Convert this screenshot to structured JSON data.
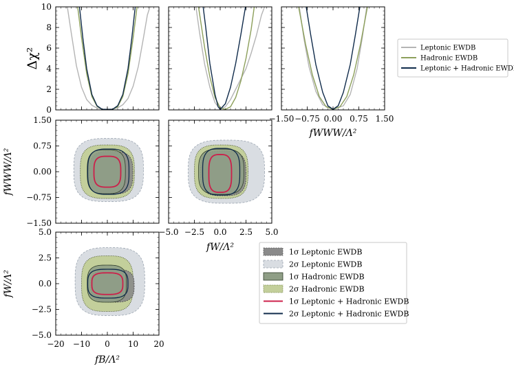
{
  "colors": {
    "leptonic_line": "#b4b4b4",
    "hadronic_line": "#8c9f5a",
    "combined_line": "#0f2a4a",
    "lep_1s_fill": "#8a8a8a",
    "lep_2s_fill": "#d9dde2",
    "had_1s_fill": "#8f9e86",
    "had_2s_fill": "#c3cf9b",
    "comb_1s_line": "#cc1f4a",
    "comb_2s_line": "#0f2a4a"
  },
  "chart_data": [
    {
      "id": "dchi2_fB",
      "type": "line",
      "ylabel": "Δχ²",
      "xlim": [
        -20,
        20
      ],
      "ylim": [
        0,
        10
      ],
      "yticks": [
        "0",
        "2",
        "4",
        "6",
        "8",
        "10"
      ],
      "series": [
        {
          "name": "Leptonic EWDB",
          "x": [
            -15.5,
            -14,
            -12,
            -10,
            -8,
            -6,
            -4,
            -2,
            0,
            2,
            4,
            6,
            8,
            10,
            12,
            14,
            15.5,
            16.5
          ],
          "y": [
            10,
            7.5,
            4.3,
            2.2,
            1.0,
            0.45,
            0.18,
            0.08,
            0.05,
            0.09,
            0.2,
            0.5,
            1.1,
            2.3,
            4.2,
            7.0,
            9.2,
            10
          ]
        },
        {
          "name": "Hadronic EWDB",
          "x": [
            -11.5,
            -10,
            -8,
            -6,
            -4,
            -2,
            0,
            2,
            4,
            6,
            8,
            10,
            11.5
          ],
          "y": [
            10,
            7.0,
            3.5,
            1.3,
            0.35,
            0.05,
            0.05,
            0.05,
            0.3,
            1.3,
            3.5,
            7.0,
            10
          ]
        },
        {
          "name": "Leptonic + Hadronic EWDB",
          "x": [
            -10.8,
            -9.5,
            -8,
            -6,
            -4,
            -2,
            0,
            2,
            4,
            6,
            8,
            9.5,
            10.8
          ],
          "y": [
            10,
            7.0,
            4.0,
            1.5,
            0.4,
            0.05,
            0.05,
            0.05,
            0.4,
            1.5,
            4.0,
            7.0,
            10
          ]
        }
      ]
    },
    {
      "id": "dchi2_fW",
      "type": "line",
      "xlim": [
        -5,
        5
      ],
      "ylim": [
        0,
        10
      ],
      "series": [
        {
          "name": "Leptonic EWDB",
          "x": [
            -2.35,
            -2.0,
            -1.5,
            -1.0,
            -0.5,
            0,
            0.5,
            1.0,
            1.5,
            2.0,
            2.5,
            3.0,
            3.5,
            4.0,
            4.3
          ],
          "y": [
            10,
            7.5,
            4.4,
            2.2,
            0.7,
            0.05,
            0.3,
            1.0,
            2.0,
            3.0,
            4.0,
            5.5,
            7.2,
            9.2,
            10
          ]
        },
        {
          "name": "Hadronic EWDB",
          "x": [
            -2.1,
            -1.8,
            -1.5,
            -1.0,
            -0.5,
            0,
            0.5,
            1.0,
            1.5,
            2.0,
            2.5,
            3.0,
            3.3
          ],
          "y": [
            10,
            8.0,
            6.0,
            3.2,
            1.2,
            0.2,
            0.05,
            0.3,
            1.2,
            2.8,
            5.0,
            7.8,
            10
          ]
        },
        {
          "name": "Leptonic + Hadronic EWDB",
          "x": [
            -1.65,
            -1.4,
            -1.0,
            -0.5,
            -0.2,
            0,
            0.5,
            1.0,
            1.5,
            2.0,
            2.45
          ],
          "y": [
            10,
            8.0,
            4.5,
            1.5,
            0.3,
            0.05,
            0.6,
            2.2,
            4.5,
            7.3,
            10
          ]
        }
      ]
    },
    {
      "id": "dchi2_fWWW",
      "type": "line",
      "xlim": [
        -1.5,
        1.5
      ],
      "ylim": [
        0,
        10
      ],
      "xlabel": "fWWW/Λ²",
      "xticks": [
        "−1.50",
        "−0.75",
        "0.00",
        "0.75",
        "1.50"
      ],
      "series": [
        {
          "name": "Leptonic EWDB",
          "x": [
            -0.98,
            -0.85,
            -0.7,
            -0.5,
            -0.3,
            0,
            0.3,
            0.5,
            0.7,
            0.85,
            0.98
          ],
          "y": [
            10,
            7.0,
            4.2,
            1.8,
            0.5,
            0.05,
            0.4,
            1.5,
            4.0,
            7.0,
            10
          ]
        },
        {
          "name": "Hadronic EWDB",
          "x": [
            -1.0,
            -0.8,
            -0.6,
            -0.4,
            -0.2,
            0,
            0.2,
            0.4,
            0.6,
            0.8,
            1.0
          ],
          "y": [
            10,
            6.4,
            3.4,
            1.3,
            0.3,
            0.05,
            0.3,
            1.3,
            3.4,
            6.4,
            10
          ]
        },
        {
          "name": "Leptonic + Hadronic EWDB",
          "x": [
            -0.78,
            -0.65,
            -0.5,
            -0.3,
            -0.15,
            0,
            0.15,
            0.3,
            0.5,
            0.65,
            0.78
          ],
          "y": [
            10,
            7.3,
            4.4,
            1.7,
            0.4,
            0.05,
            0.4,
            1.7,
            4.4,
            7.3,
            10
          ]
        }
      ]
    },
    {
      "id": "contour_fB_fWWW",
      "type": "contour",
      "ylabel": "fWWW/Λ²",
      "xlim": [
        -20,
        20
      ],
      "ylim": [
        -1.5,
        1.5
      ],
      "yticks": [
        "−1.50",
        "−0.75",
        "0.00",
        "0.75",
        "1.50"
      ],
      "regions": {
        "lep_2s": {
          "cx": 0.5,
          "cy": 0.05,
          "rx": 13.5,
          "ry": 0.92
        },
        "had_2s": {
          "cx": 0.0,
          "cy": 0.0,
          "rx": 10.5,
          "ry": 0.78
        },
        "lep_1s": {
          "cx": 1.5,
          "cy": -0.03,
          "rx": 8.4,
          "ry": 0.62
        },
        "had_1s": {
          "cx": -0.4,
          "cy": 0.0,
          "rx": 7.4,
          "ry": 0.64
        },
        "comb_2s": {
          "cx": 0.4,
          "cy": 0.0,
          "rx": 8.0,
          "ry": 0.66
        },
        "comb_1s": {
          "cx": 0.0,
          "cy": 0.0,
          "rx": 5.2,
          "ry": 0.45
        }
      }
    },
    {
      "id": "contour_fW_fWWW",
      "type": "contour",
      "xlim": [
        -5,
        5
      ],
      "ylim": [
        -1.5,
        1.5
      ],
      "xlabel": "fW/Λ²",
      "xticks": [
        "−5.0",
        "−2.5",
        "0.0",
        "2.5",
        "5.0"
      ],
      "regions": {
        "lep_2s": {
          "cx": 0.6,
          "cy": 0.0,
          "rx": 3.7,
          "ry": 0.92
        },
        "had_2s": {
          "cx": 0.1,
          "cy": 0.0,
          "rx": 2.6,
          "ry": 0.78
        },
        "lep_1s": {
          "cx": 0.3,
          "cy": -0.05,
          "rx": 2.2,
          "ry": 0.65
        },
        "had_1s": {
          "cx": 0.1,
          "cy": 0.0,
          "rx": 2.2,
          "ry": 0.66
        },
        "comb_2s": {
          "cx": 0.1,
          "cy": 0.0,
          "rx": 1.8,
          "ry": 0.68
        },
        "comb_1s": {
          "cx": 0.0,
          "cy": -0.05,
          "rx": 1.1,
          "ry": 0.55
        }
      }
    },
    {
      "id": "contour_fB_fW",
      "type": "contour",
      "ylabel": "fW/Λ²",
      "xlabel": "fB/Λ²",
      "xlim": [
        -20,
        20
      ],
      "ylim": [
        -5,
        5
      ],
      "xticks": [
        "−20",
        "−10",
        "0",
        "10",
        "20"
      ],
      "yticks": [
        "−5.0",
        "−2.5",
        "0.0",
        "2.5",
        "5.0"
      ],
      "regions": {
        "lep_2s": {
          "cx": 1.0,
          "cy": 0.2,
          "rx": 13.5,
          "ry": 3.3
        },
        "had_2s": {
          "cx": 0.0,
          "cy": 0.0,
          "rx": 10.0,
          "ry": 2.7
        },
        "lep_1s": {
          "cx": 2.0,
          "cy": -0.2,
          "rx": 8.4,
          "ry": 1.6
        },
        "had_1s": {
          "cx": -0.2,
          "cy": 0.0,
          "rx": 7.6,
          "ry": 1.8
        },
        "comb_2s": {
          "cx": 0.2,
          "cy": 0.0,
          "rx": 7.8,
          "ry": 1.4
        },
        "comb_1s": {
          "cx": 0.0,
          "cy": 0.0,
          "rx": 6.0,
          "ry": 1.05
        }
      }
    }
  ],
  "legend_top": {
    "entries": [
      "Leptonic EWDB",
      "Hadronic EWDB",
      "Leptonic + Hadronic EWDB"
    ]
  },
  "legend_bottom": {
    "entries": [
      "1σ Leptonic EWDB",
      "2σ Leptonic EWDB",
      "1σ Hadronic EWDB",
      "2σ Hadronic EWDB",
      "1σ Leptonic + Hadronic EWDB",
      "2σ Leptonic + Hadronic EWDB"
    ]
  }
}
